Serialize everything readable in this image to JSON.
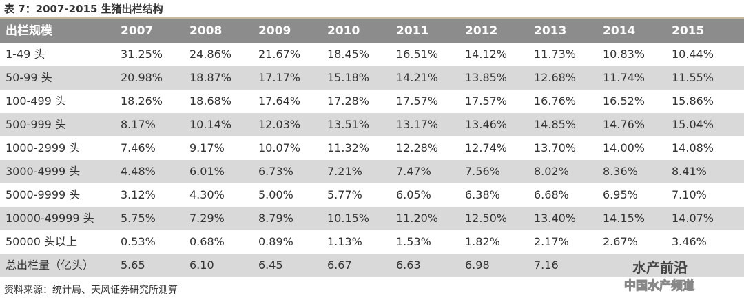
{
  "header": {
    "title": "表 7：2007-2015 生猪出栏结构"
  },
  "table": {
    "columns": [
      "出栏规模",
      "2007",
      "2008",
      "2009",
      "2010",
      "2011",
      "2012",
      "2013",
      "2014",
      "2015"
    ],
    "rows": [
      [
        "1-49 头",
        "31.25%",
        "24.86%",
        "21.67%",
        "18.45%",
        "16.51%",
        "14.12%",
        "11.73%",
        "10.83%",
        "10.44%"
      ],
      [
        "50-99 头",
        "20.98%",
        "18.87%",
        "17.17%",
        "15.18%",
        "14.21%",
        "13.85%",
        "12.68%",
        "11.74%",
        "11.55%"
      ],
      [
        "100-499 头",
        "18.26%",
        "18.68%",
        "17.64%",
        "17.28%",
        "17.57%",
        "17.57%",
        "16.76%",
        "16.52%",
        "15.86%"
      ],
      [
        "500-999 头",
        "8.17%",
        "10.14%",
        "12.03%",
        "13.51%",
        "13.17%",
        "13.46%",
        "14.85%",
        "14.76%",
        "15.04%"
      ],
      [
        "1000-2999 头",
        "7.46%",
        "9.17%",
        "10.07%",
        "11.32%",
        "12.28%",
        "12.74%",
        "13.70%",
        "14.00%",
        "14.08%"
      ],
      [
        "3000-4999 头",
        "4.48%",
        "6.01%",
        "6.73%",
        "7.21%",
        "7.47%",
        "7.56%",
        "8.02%",
        "8.36%",
        "8.41%"
      ],
      [
        "5000-9999 头",
        "3.12%",
        "4.30%",
        "5.00%",
        "5.77%",
        "6.05%",
        "6.38%",
        "6.68%",
        "6.95%",
        "7.10%"
      ],
      [
        "10000-49999 头",
        "5.75%",
        "7.29%",
        "8.79%",
        "10.15%",
        "11.20%",
        "12.50%",
        "13.40%",
        "14.15%",
        "14.07%"
      ],
      [
        "50000 头以上",
        "0.53%",
        "0.68%",
        "0.89%",
        "1.13%",
        "1.53%",
        "1.82%",
        "2.17%",
        "2.67%",
        "3.46%"
      ],
      [
        "总出栏量（亿头）",
        "5.65",
        "6.10",
        "6.45",
        "6.67",
        "6.63",
        "6.98",
        "7.16",
        null,
        null
      ]
    ]
  },
  "footer": {
    "source": "资料来源：统计局、天风证券研究所测算"
  },
  "watermark": {
    "name": "水产前沿",
    "sub": "中国水产频道"
  }
}
